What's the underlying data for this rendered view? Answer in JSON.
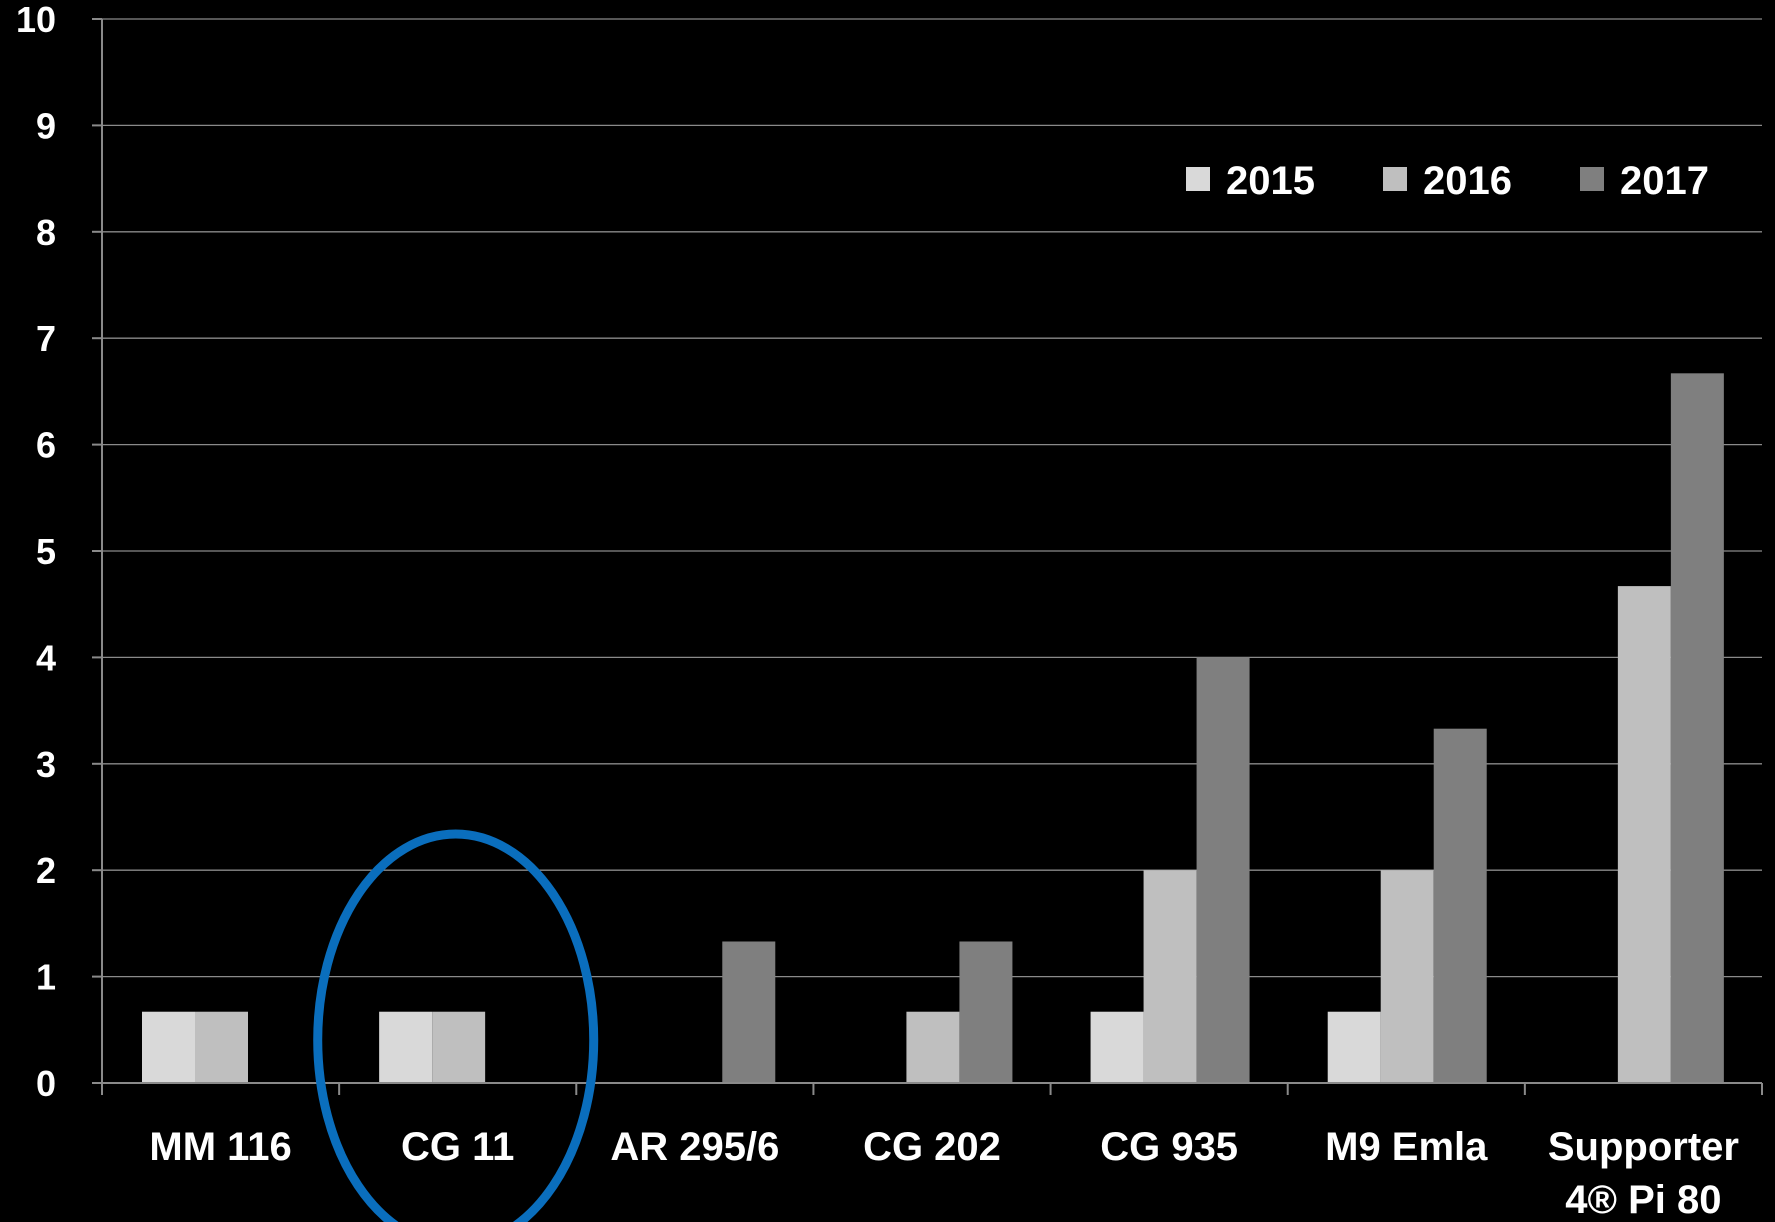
{
  "chart_data": {
    "type": "bar",
    "categories": [
      [
        "MM 116"
      ],
      [
        "CG 11"
      ],
      [
        "AR 295/6"
      ],
      [
        "CG 202"
      ],
      [
        "CG 935"
      ],
      [
        "M9 Emla"
      ],
      [
        "Supporter",
        "4® Pi 80"
      ]
    ],
    "series": [
      {
        "name": "2015",
        "color": "#d9d9d9",
        "values": [
          0.67,
          0.67,
          0,
          0,
          0.67,
          0.67,
          0
        ]
      },
      {
        "name": "2016",
        "color": "#bfbfbf",
        "values": [
          0.67,
          0.67,
          0,
          0.67,
          2,
          2,
          4.67
        ]
      },
      {
        "name": "2017",
        "color": "#7f7f7f",
        "values": [
          0,
          0,
          1.33,
          1.33,
          4,
          3.33,
          6.67
        ]
      }
    ],
    "ylim": [
      0,
      10
    ],
    "yticks": [
      "0",
      "1",
      "2",
      "3",
      "4",
      "5",
      "6",
      "7",
      "8",
      "9",
      "10"
    ],
    "grid": true,
    "legend_position": "top-right",
    "highlight": {
      "category_index": 1,
      "shape": "ellipse",
      "color": "#0a6ebd"
    },
    "background": "#000000"
  }
}
